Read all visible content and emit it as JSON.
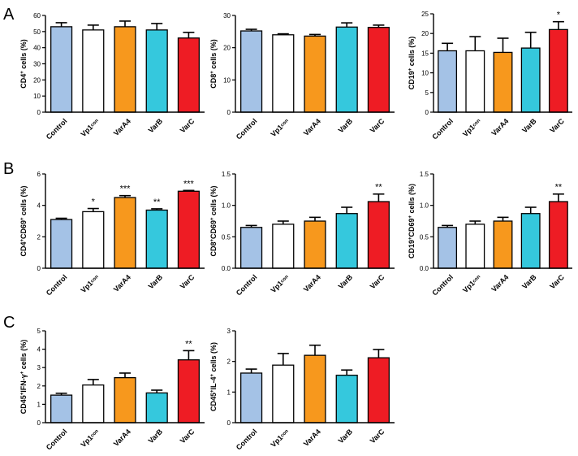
{
  "panel_letters": [
    "A",
    "B",
    "C"
  ],
  "colors": {
    "Control": "#a4c2e6",
    "Vp1con": "#ffffff",
    "VarA4": "#f7981d",
    "VarB": "#35c8dd",
    "VarC": "#ee1c24",
    "axis": "#000000"
  },
  "chart_data": [
    {
      "type": "bar",
      "panel": "A",
      "ylabel": "CD4+ cells (%)",
      "ylabel_sup": "+",
      "ylabel_pre": "CD4",
      "ylabel_post": " cells (%)",
      "categories": [
        "Control",
        "Vp1con",
        "VarA4",
        "VarB",
        "VarC"
      ],
      "values": [
        53,
        51,
        53,
        51,
        46
      ],
      "errors": [
        2.5,
        3,
        3.5,
        4,
        3.5
      ],
      "significance": [
        "",
        "",
        "",
        "",
        ""
      ],
      "ylim": [
        0,
        60
      ],
      "yticks": [
        0,
        10,
        20,
        30,
        40,
        50,
        60
      ]
    },
    {
      "type": "bar",
      "panel": "A",
      "ylabel_pre": "CD8",
      "ylabel_sup": "+",
      "ylabel_post": " cells (%)",
      "categories": [
        "Control",
        "Vp1con",
        "VarA4",
        "VarB",
        "VarC"
      ],
      "values": [
        25.2,
        24,
        23.6,
        26.4,
        26.3
      ],
      "errors": [
        0.5,
        0.3,
        0.5,
        1.3,
        0.7
      ],
      "significance": [
        "",
        "",
        "",
        "",
        ""
      ],
      "ylim": [
        0,
        30
      ],
      "yticks": [
        0,
        10,
        20,
        30
      ]
    },
    {
      "type": "bar",
      "panel": "A",
      "ylabel_pre": "CD19",
      "ylabel_sup": "+",
      "ylabel_post": " cells (%)",
      "categories": [
        "Control",
        "Vp1con",
        "VarA4",
        "VarB",
        "VarC"
      ],
      "values": [
        15.6,
        15.6,
        15.2,
        16.3,
        21
      ],
      "errors": [
        1.9,
        3.6,
        3.6,
        4,
        2
      ],
      "significance": [
        "",
        "",
        "",
        "",
        "*"
      ],
      "ylim": [
        0,
        25
      ],
      "yticks": [
        0,
        5,
        10,
        15,
        20,
        25
      ]
    },
    {
      "type": "bar",
      "panel": "B",
      "ylabel_pre": "CD4",
      "ylabel_sup": "+",
      "ylabel_mid": "CD69",
      "ylabel_sup2": "+",
      "ylabel_post": " cells (%)",
      "categories": [
        "Control",
        "Vp1con",
        "VarA4",
        "VarB",
        "VarC"
      ],
      "values": [
        3.1,
        3.6,
        4.5,
        3.7,
        4.9
      ],
      "errors": [
        0.08,
        0.2,
        0.12,
        0.08,
        0.05
      ],
      "significance": [
        "",
        "*",
        "***",
        "**",
        "***"
      ],
      "ylim": [
        0,
        6
      ],
      "yticks": [
        0,
        2,
        4,
        6
      ]
    },
    {
      "type": "bar",
      "panel": "B",
      "ylabel_pre": "CD8",
      "ylabel_sup": "+",
      "ylabel_mid": "CD69",
      "ylabel_sup2": "+",
      "ylabel_post": " cells (%)",
      "categories": [
        "Control",
        "Vp1con",
        "VarA4",
        "VarB",
        "VarC"
      ],
      "values": [
        0.65,
        0.7,
        0.75,
        0.87,
        1.06
      ],
      "errors": [
        0.03,
        0.05,
        0.06,
        0.1,
        0.12
      ],
      "significance": [
        "",
        "",
        "",
        "",
        "**"
      ],
      "ylim": [
        0,
        1.5
      ],
      "yticks": [
        0.0,
        0.5,
        1.0,
        1.5
      ],
      "ytick_labels": [
        "0.0",
        "0.5",
        "1.0",
        "1.5"
      ]
    },
    {
      "type": "bar",
      "panel": "B",
      "ylabel_pre": "CD19",
      "ylabel_sup": "+",
      "ylabel_mid": "CD69",
      "ylabel_sup2": "+",
      "ylabel_post": " cells (%)",
      "categories": [
        "Control",
        "Vp1con",
        "VarA4",
        "VarB",
        "VarC"
      ],
      "values": [
        0.65,
        0.7,
        0.75,
        0.87,
        1.06
      ],
      "errors": [
        0.03,
        0.05,
        0.06,
        0.1,
        0.12
      ],
      "significance": [
        "",
        "",
        "",
        "",
        "**"
      ],
      "ylim": [
        0,
        1.5
      ],
      "yticks": [
        0.0,
        0.5,
        1.0,
        1.5
      ],
      "ytick_labels": [
        "0.0",
        "0.5",
        "1.0",
        "1.5"
      ]
    },
    {
      "type": "bar",
      "panel": "C",
      "ylabel_pre": "CD45",
      "ylabel_sup": "+",
      "ylabel_mid": "IFN-γ",
      "ylabel_sup2": "+",
      "ylabel_post": " cells (%)",
      "categories": [
        "Control",
        "Vp1con",
        "VarA4",
        "VarB",
        "VarC"
      ],
      "values": [
        1.5,
        2.05,
        2.45,
        1.62,
        3.42
      ],
      "errors": [
        0.1,
        0.3,
        0.25,
        0.15,
        0.5
      ],
      "significance": [
        "",
        "",
        "",
        "",
        "**"
      ],
      "ylim": [
        0,
        5
      ],
      "yticks": [
        0,
        1,
        2,
        3,
        4,
        5
      ]
    },
    {
      "type": "bar",
      "panel": "C",
      "ylabel_pre": "CD45",
      "ylabel_sup": "+",
      "ylabel_mid": "IL-4",
      "ylabel_sup2": "+",
      "ylabel_post": " cells (%)",
      "categories": [
        "Control",
        "Vp1con",
        "VarA4",
        "VarB",
        "VarC"
      ],
      "values": [
        1.62,
        1.88,
        2.2,
        1.55,
        2.12
      ],
      "errors": [
        0.13,
        0.38,
        0.33,
        0.17,
        0.27
      ],
      "significance": [
        "",
        "",
        "",
        "",
        ""
      ],
      "ylim": [
        0,
        3
      ],
      "yticks": [
        0,
        1,
        2,
        3
      ]
    }
  ]
}
